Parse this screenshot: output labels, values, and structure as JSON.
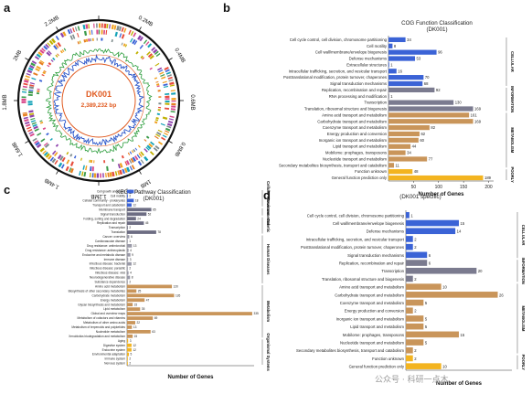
{
  "panels": {
    "a": {
      "label": "a",
      "genome_name": "DK001",
      "genome_size": "2,389,232 bp",
      "ticks": [
        "0.2MB",
        "0.4MB",
        "0.6MB",
        "0.8MB",
        "1MB",
        "1.2MB",
        "1.4MB",
        "1.6MB",
        "1.8MB",
        "2MB",
        "2.2MB"
      ]
    }
  },
  "chart_data": [
    {
      "panel": "b",
      "type": "bar",
      "orientation": "horizontal",
      "title": "COG Function Classification",
      "subtitle": "(DK001)",
      "xlabel": "Number of Genes",
      "ylabel": "",
      "xticks": [
        "50",
        "100",
        "150",
        "200"
      ],
      "xlim": [
        0,
        210
      ],
      "highlight_index": 15,
      "highlight_color": "#f0a020",
      "categories": [
        "Cell cycle control, cell division, chromosome partitioning",
        "Cell motility",
        "Cell wall/membrane/envelope biogenesis",
        "Defense mechanisms",
        "Extracellular structures",
        "Intracellular trafficking, secretion, and vesicular transport",
        "Posttranslational modification, protein turnover, chaperones",
        "Signal transduction mechanisms",
        "Replication, recombination and repair",
        "RNA processing and modification",
        "Transcription",
        "Translation, ribosomal structure and biogenesis",
        "Amino acid transport and metabolism",
        "Carbohydrate transport and metabolism",
        "Coenzyme transport and metabolism",
        "Energy production and conversion",
        "Inorganic ion transport and metabolism",
        "Lipid transport and metabolism",
        "Mobilome: prophages, transposons",
        "Nucleotide transport and metabolism",
        "Secondary metabolites biosynthesis, transport and catabolism",
        "Function unknown",
        "General function prediction only"
      ],
      "values": [
        34,
        8,
        96,
        53,
        1,
        16,
        70,
        68,
        92,
        1,
        130,
        169,
        161,
        169,
        82,
        62,
        60,
        44,
        34,
        77,
        11,
        48,
        189
      ],
      "colors": [
        "#3b63d6",
        "#3b63d6",
        "#3b63d6",
        "#3b63d6",
        "#3b63d6",
        "#3b63d6",
        "#3b63d6",
        "#3b63d6",
        "#7b7b8f",
        "#7b7b8f",
        "#7b7b8f",
        "#7b7b8f",
        "#c9955a",
        "#c9955a",
        "#c9955a",
        "#c9955a",
        "#c9955a",
        "#c9955a",
        "#c9955a",
        "#c9955a",
        "#c9955a",
        "#f3b420",
        "#f3b420"
      ],
      "groups": [
        {
          "label": "CELLULAR",
          "from": 0,
          "to": 7
        },
        {
          "label": "INFORMATION",
          "from": 8,
          "to": 11
        },
        {
          "label": "METABOLISM",
          "from": 12,
          "to": 20
        },
        {
          "label": "POORLY",
          "from": 21,
          "to": 22
        }
      ]
    },
    {
      "panel": "c",
      "type": "bar",
      "orientation": "horizontal",
      "title": "KEGG Pathway Classification",
      "subtitle": "(DK001)",
      "xlabel": "Number of Genes",
      "ylabel": "",
      "xticks": [],
      "xlim": [
        0,
        340
      ],
      "highlight_index": 25,
      "highlight_color": "#f0a020",
      "categories": [
        "Cell growth and death",
        "Cell motility",
        "Cellular community - prokaryotes",
        "Transport and catabolism",
        "Membrane transport",
        "Signal transduction",
        "Folding, sorting and degradation",
        "Replication and repair",
        "Transcription",
        "Translation",
        "Cancer: overview",
        "Cardiovascular disease",
        "Drug resistance: antimicrobial",
        "Drug resistance: antineoplastic",
        "Endocrine and metabolic disease",
        "Immune disease",
        "Infectious disease: bacterial",
        "Infectious disease: parasitic",
        "Infectious disease: viral",
        "Neurodegenerative disease",
        "Substance dependence",
        "Amino acid metabolism",
        "Biosynthesis of other secondary metabolites",
        "Carbohydrate metabolism",
        "Energy metabolism",
        "Glycan biosynthesis and metabolism",
        "Lipid metabolism",
        "Global and overview maps",
        "Metabolism of cofactors and vitamins",
        "Metabolism of other amino acids",
        "Metabolism of terpenoids and polyketides",
        "Nucleotide metabolism",
        "Xenobiotics biodegradation and metabolism",
        "Aging",
        "Digestive system",
        "Endocrine system",
        "Environmental adaptation",
        "Immune system",
        "Nervous system"
      ],
      "values": [
        18,
        2,
        18,
        12,
        65,
        52,
        24,
        45,
        2,
        78,
        6,
        1,
        13,
        4,
        9,
        3,
        12,
        2,
        4,
        8,
        2,
        120,
        25,
        126,
        47,
        15,
        35,
        335,
        69,
        22,
        13,
        63,
        15,
        3,
        12,
        12,
        5,
        2,
        2
      ],
      "colors": [
        "#3b63d6",
        "#3b63d6",
        "#3b63d6",
        "#3b63d6",
        "#6d6d83",
        "#6d6d83",
        "#6d6d83",
        "#6d6d83",
        "#6d6d83",
        "#6d6d83",
        "#9a9aa8",
        "#9a9aa8",
        "#9a9aa8",
        "#9a9aa8",
        "#9a9aa8",
        "#9a9aa8",
        "#9a9aa8",
        "#9a9aa8",
        "#9a9aa8",
        "#9a9aa8",
        "#9a9aa8",
        "#c9955a",
        "#c9955a",
        "#c9955a",
        "#c9955a",
        "#c9955a",
        "#c9955a",
        "#c9955a",
        "#c9955a",
        "#c9955a",
        "#c9955a",
        "#c9955a",
        "#c9955a",
        "#f3b420",
        "#f3b420",
        "#f3b420",
        "#f3b420",
        "#f3b420",
        "#f3b420"
      ],
      "groups": [
        {
          "label": "Cellular Processes",
          "from": 0,
          "to": 3
        },
        {
          "label": "Environmental",
          "from": 4,
          "to": 5
        },
        {
          "label": "Genetic",
          "from": 6,
          "to": 9
        },
        {
          "label": "Human Diseases",
          "from": 10,
          "to": 20
        },
        {
          "label": "Metabolism",
          "from": 21,
          "to": 32
        },
        {
          "label": "Organismal Systems",
          "from": 33,
          "to": 38
        }
      ]
    },
    {
      "panel": "d",
      "type": "bar",
      "orientation": "horizontal",
      "title": "",
      "subtitle": "(DK001 specific)",
      "xlabel": "Number of Genes",
      "ylabel": "",
      "xticks": [],
      "xlim": [
        0,
        30
      ],
      "highlight_index": 12,
      "highlight_color": "#f0a020",
      "categories": [
        "Cell cycle control, cell division, chromosome partitioning",
        "Cell wall/membrane/envelope biogenesis",
        "Defense mechanisms",
        "Intracellular trafficking, secretion, and vesicular transport",
        "Posttranslational modification, protein turnover, chaperones",
        "Signal transduction mechanisms",
        "Replication, recombination and repair",
        "Transcription",
        "Translation, ribosomal structure and biogenesis",
        "Amino acid transport and metabolism",
        "Carbohydrate transport and metabolism",
        "Coenzyme transport and metabolism",
        "Energy production and conversion",
        "Inorganic ion transport and metabolism",
        "Lipid transport and metabolism",
        "Mobilome: prophages, transposons",
        "Nucleotide transport and metabolism",
        "Secondary metabolites biosynthesis, transport and catabolism",
        "Function unknown",
        "General function prediction only"
      ],
      "values": [
        1,
        15,
        14,
        2,
        2,
        6,
        6,
        20,
        2,
        10,
        26,
        5,
        2,
        5,
        5,
        15,
        5,
        2,
        2,
        10
      ],
      "colors": [
        "#3b63d6",
        "#3b63d6",
        "#3b63d6",
        "#3b63d6",
        "#3b63d6",
        "#3b63d6",
        "#7b7b8f",
        "#7b7b8f",
        "#7b7b8f",
        "#c9955a",
        "#c9955a",
        "#c9955a",
        "#c9955a",
        "#c9955a",
        "#c9955a",
        "#c9955a",
        "#c9955a",
        "#c9955a",
        "#f3b420",
        "#f3b420"
      ],
      "groups": [
        {
          "label": "CELLULAR",
          "from": 0,
          "to": 5
        },
        {
          "label": "INFORMATION",
          "from": 6,
          "to": 8
        },
        {
          "label": "METABOLISM",
          "from": 9,
          "to": 17
        },
        {
          "label": "POORLY",
          "from": 18,
          "to": 19
        }
      ]
    }
  ],
  "watermark": "公众号 · 科研一点木"
}
